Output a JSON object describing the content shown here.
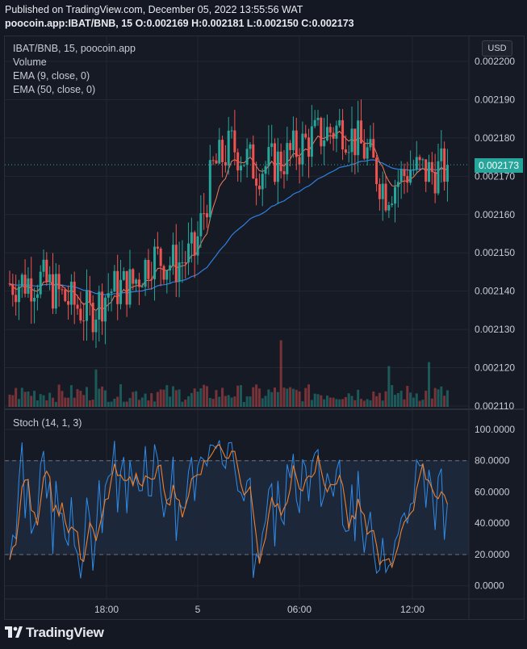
{
  "header": {
    "published": "Published on TradingView.com, December 05, 2022 13:55:56 WAT",
    "symbol_line": "poocoin.app:IBAT/BNB, 15  O:0.002169 H:0.002181 L:0.002150 C:0.002173"
  },
  "legend": {
    "symbol": "IBAT/BNB, 15, poocoin.app",
    "volume": "Volume",
    "ema9": "EMA (9, close, 0)",
    "ema50": "EMA (50, close, 0)"
  },
  "stoch_legend": "Stoch (14, 1, 3)",
  "currency_button": "USD",
  "last_price": "0.002173",
  "price_axis": [
    "0.002200",
    "0.002190",
    "0.002180",
    "0.002170",
    "0.002160",
    "0.002150",
    "0.002140",
    "0.002130",
    "0.002120",
    "0.002110"
  ],
  "stoch_axis": [
    "100.0000",
    "80.0000",
    "60.0000",
    "40.0000",
    "20.0000",
    "0.0000"
  ],
  "time_axis": [
    "18:00",
    "5",
    "06:00",
    "12:00"
  ],
  "footer": {
    "brand": "TradingView"
  },
  "colors": {
    "up": "#26a69a",
    "down": "#ef5350",
    "ema9": "#f57c5c",
    "ema50": "#2f7fe0",
    "stoch_k": "#2f8ce8",
    "stoch_d": "#f0802c"
  },
  "chart_data": {
    "type": "candlestick",
    "symbol": "IBAT/BNB",
    "interval": "15",
    "ylim": [
      0.00211,
      0.002205
    ],
    "last": {
      "open": 0.002169,
      "high": 0.002181,
      "low": 0.00215,
      "close": 0.002173
    },
    "stoch_ylim": [
      0,
      100
    ],
    "stoch_bands": [
      20,
      80
    ]
  }
}
